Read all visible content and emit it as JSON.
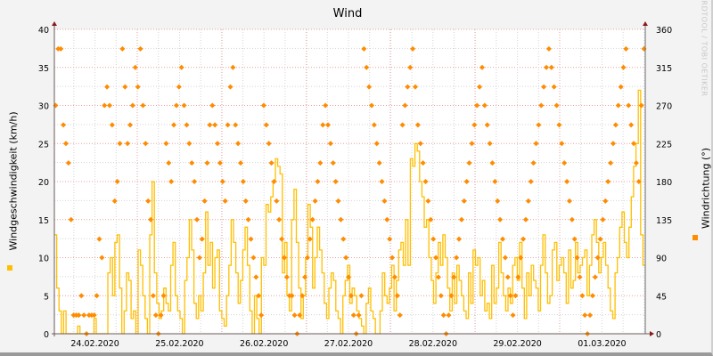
{
  "chart_data": {
    "type": "line",
    "title": "Wind",
    "xlabel": "",
    "ylabel": "Windgeschwindigkeit (km/h)",
    "ylabel_right": "Windrichtung (°)",
    "watermark": "RRDTOOL / TOBI OETIKER",
    "ylim": [
      0,
      40
    ],
    "ylim_right": [
      0,
      360
    ],
    "yticks": [
      0,
      5,
      10,
      15,
      20,
      25,
      30,
      35,
      40
    ],
    "yticks_right": [
      0,
      45,
      90,
      135,
      180,
      225,
      270,
      315,
      360
    ],
    "xtick_labels": [
      "24.02.2020",
      "25.02.2020",
      "26.02.2020",
      "27.02.2020",
      "28.02.2020",
      "29.02.2020",
      "01.03.2020"
    ],
    "grid": true,
    "legend_position": "side",
    "series": [
      {
        "name": "Windgeschwindigkeit",
        "type": "step-line",
        "color": "#ffbf00",
        "axis": "left",
        "values": [
          13,
          6,
          3,
          0,
          3,
          0,
          0,
          0,
          0,
          0,
          1,
          0,
          0,
          0,
          0,
          0,
          0,
          2,
          0,
          0,
          0,
          0,
          0,
          8,
          10,
          5,
          12,
          13,
          6,
          0,
          3,
          8,
          7,
          2,
          3,
          0,
          11,
          9,
          5,
          2,
          0,
          13,
          20,
          8,
          4,
          2,
          3,
          6,
          4,
          3,
          9,
          12,
          5,
          3,
          2,
          0,
          7,
          10,
          15,
          11,
          4,
          2,
          5,
          3,
          8,
          16,
          9,
          12,
          6,
          10,
          11,
          3,
          2,
          1,
          5,
          9,
          15,
          12,
          8,
          4,
          7,
          11,
          14,
          9,
          3,
          0,
          5,
          2,
          0,
          10,
          9,
          17,
          16,
          18,
          20,
          23,
          22,
          21,
          8,
          12,
          5,
          3,
          15,
          19,
          12,
          6,
          2,
          5,
          10,
          17,
          14,
          6,
          10,
          14,
          11,
          8,
          4,
          2,
          6,
          8,
          7,
          3,
          2,
          0,
          5,
          7,
          9,
          4,
          6,
          5,
          3,
          2,
          1,
          0,
          4,
          6,
          3,
          2,
          0,
          0,
          3,
          8,
          5,
          4,
          6,
          9,
          3,
          7,
          11,
          12,
          9,
          15,
          9,
          23,
          22,
          25,
          24,
          20,
          18,
          14,
          15,
          10,
          7,
          4,
          8,
          12,
          9,
          13,
          10,
          6,
          3,
          8,
          4,
          9,
          7,
          5,
          3,
          2,
          8,
          4,
          11,
          9,
          10,
          5,
          7,
          3,
          4,
          2,
          9,
          4,
          6,
          12,
          8,
          5,
          3,
          6,
          4,
          9,
          10,
          7,
          12,
          6,
          2,
          8,
          5,
          9,
          7,
          6,
          3,
          9,
          13,
          8,
          4,
          5,
          11,
          12,
          7,
          9,
          10,
          8,
          4,
          11,
          6,
          7,
          12,
          8,
          9,
          10,
          11,
          5,
          9,
          13,
          15,
          12,
          8,
          10,
          12,
          9,
          6,
          3,
          2,
          8,
          10,
          14,
          16,
          12,
          10,
          14,
          18,
          22,
          25,
          32,
          13,
          9
        ]
      },
      {
        "name": "Windrichtung",
        "type": "scatter",
        "color": "#ff8c00",
        "axis": "right",
        "values": [
          270,
          337,
          337,
          247,
          225,
          202,
          135,
          22,
          22,
          22,
          45,
          22,
          0,
          22,
          22,
          22,
          45,
          112,
          90,
          270,
          292,
          270,
          247,
          157,
          180,
          225,
          337,
          292,
          225,
          247,
          270,
          315,
          292,
          337,
          270,
          225,
          157,
          135,
          45,
          22,
          0,
          22,
          45,
          225,
          202,
          180,
          247,
          270,
          292,
          315,
          270,
          247,
          225,
          202,
          180,
          135,
          90,
          112,
          157,
          202,
          247,
          270,
          247,
          225,
          202,
          180,
          157,
          247,
          292,
          315,
          247,
          225,
          202,
          180,
          157,
          135,
          112,
          90,
          67,
          45,
          22,
          270,
          247,
          225,
          202,
          180,
          157,
          135,
          112,
          90,
          67,
          45,
          45,
          22,
          0,
          22,
          45,
          67,
          90,
          112,
          135,
          157,
          180,
          202,
          247,
          270,
          247,
          225,
          202,
          180,
          157,
          135,
          112,
          90,
          67,
          45,
          22,
          0,
          22,
          45,
          337,
          315,
          292,
          270,
          247,
          225,
          202,
          180,
          157,
          135,
          112,
          90,
          67,
          45,
          22,
          247,
          270,
          292,
          315,
          337,
          292,
          247,
          225,
          202,
          180,
          157,
          135,
          112,
          90,
          67,
          45,
          22,
          0,
          22,
          45,
          67,
          90,
          112,
          135,
          157,
          180,
          202,
          225,
          247,
          270,
          292,
          315,
          270,
          247,
          225,
          202,
          180,
          157,
          135,
          112,
          90,
          67,
          45,
          22,
          45,
          67,
          90,
          112,
          135,
          157,
          180,
          202,
          225,
          247,
          270,
          292,
          315,
          337,
          315,
          292,
          270,
          247,
          225,
          202,
          180,
          157,
          135,
          112,
          90,
          67,
          45,
          22,
          0,
          22,
          45,
          67,
          90,
          112,
          135,
          157,
          180,
          202,
          225,
          247,
          270,
          292,
          315,
          337,
          270,
          247,
          225,
          202,
          180,
          270,
          337
        ]
      }
    ]
  },
  "legend": {
    "left_swatch_color": "#ffbf00",
    "right_swatch_color": "#ff8c00"
  }
}
